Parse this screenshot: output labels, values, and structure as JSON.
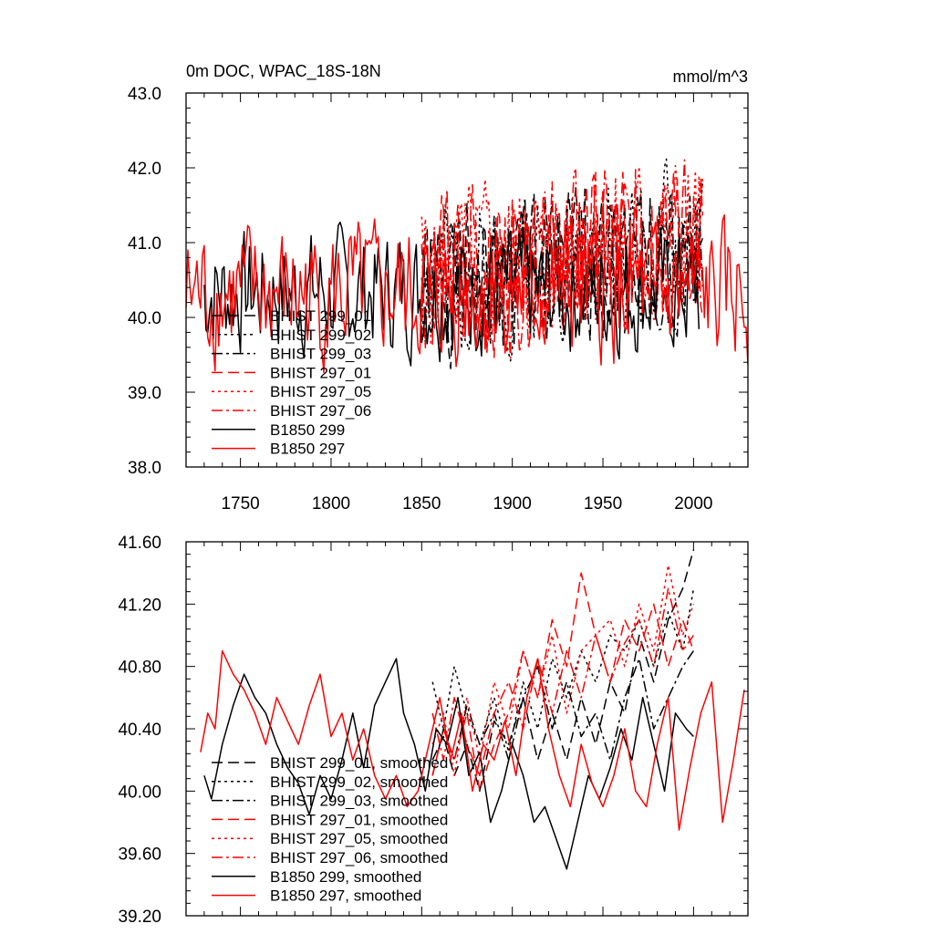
{
  "chart_data": [
    {
      "type": "line",
      "title": "0m DOC, WPAC_18S-18N",
      "units": "mmol/m^3",
      "xlabel": "",
      "ylabel": "",
      "xlim": [
        1720,
        2030
      ],
      "ylim": [
        38.0,
        43.0
      ],
      "xticks": [
        "1750",
        "1800",
        "1850",
        "1900",
        "1950",
        "2000"
      ],
      "yticks": [
        "38.0",
        "39.0",
        "40.0",
        "41.0",
        "42.0",
        "43.0"
      ],
      "legend_position": "left",
      "series": [
        {
          "name": "BHIST 299_01",
          "color": "#000000",
          "dash": "longdash",
          "x_range": [
            1850,
            2005
          ],
          "mean": 40.45,
          "noise": 0.55,
          "trend": 0.5,
          "seed": 1
        },
        {
          "name": "BHIST 299_02",
          "color": "#000000",
          "dash": "dot",
          "x_range": [
            1850,
            2005
          ],
          "mean": 40.5,
          "noise": 0.55,
          "trend": 0.45,
          "seed": 2
        },
        {
          "name": "BHIST 299_03",
          "color": "#000000",
          "dash": "dashdot",
          "x_range": [
            1850,
            2005
          ],
          "mean": 40.4,
          "noise": 0.5,
          "trend": 0.5,
          "seed": 3
        },
        {
          "name": "BHIST 297_01",
          "color": "#ff0000",
          "dash": "longdash",
          "x_range": [
            1850,
            2005
          ],
          "mean": 40.6,
          "noise": 0.6,
          "trend": 0.5,
          "seed": 4
        },
        {
          "name": "BHIST 297_05",
          "color": "#ff0000",
          "dash": "dot",
          "x_range": [
            1850,
            2005
          ],
          "mean": 40.6,
          "noise": 0.6,
          "trend": 0.55,
          "seed": 5
        },
        {
          "name": "BHIST 297_06",
          "color": "#ff0000",
          "dash": "dashdot",
          "x_range": [
            1850,
            2005
          ],
          "mean": 40.55,
          "noise": 0.6,
          "trend": 0.5,
          "seed": 6
        },
        {
          "name": "B1850 299",
          "color": "#000000",
          "dash": "solid",
          "x_range": [
            1730,
            2003
          ],
          "mean": 40.35,
          "noise": 0.45,
          "trend": 0.0,
          "seed": 7
        },
        {
          "name": "B1850 297",
          "color": "#ff0000",
          "dash": "solid",
          "x_range": [
            1720,
            2030
          ],
          "mean": 40.3,
          "noise": 0.5,
          "trend": 0.0,
          "seed": 8
        }
      ]
    },
    {
      "type": "line",
      "title": "",
      "xlabel": "",
      "ylabel": "",
      "xlim": [
        1720,
        2030
      ],
      "ylim": [
        39.2,
        41.6
      ],
      "yticks": [
        "39.20",
        "39.60",
        "40.00",
        "40.40",
        "40.80",
        "41.20",
        "41.60"
      ],
      "legend_position": "left",
      "series": [
        {
          "name": "BHIST 299_01, smoothed",
          "color": "#000000",
          "dash": "longdash",
          "x": [
            1856,
            1862,
            1868,
            1875,
            1882,
            1890,
            1898,
            1906,
            1914,
            1922,
            1930,
            1938,
            1946,
            1954,
            1962,
            1970,
            1978,
            1986,
            1994,
            2000
          ],
          "y": [
            40.2,
            40.35,
            40.1,
            40.3,
            40.0,
            40.45,
            40.3,
            40.6,
            40.2,
            40.5,
            40.2,
            40.6,
            40.3,
            40.7,
            40.5,
            41.0,
            40.7,
            41.1,
            41.3,
            41.55
          ]
        },
        {
          "name": "BHIST 299_02, smoothed",
          "color": "#000000",
          "dash": "dot",
          "x": [
            1856,
            1862,
            1868,
            1875,
            1882,
            1890,
            1898,
            1906,
            1914,
            1922,
            1930,
            1938,
            1946,
            1954,
            1962,
            1970,
            1978,
            1986,
            1994,
            2000
          ],
          "y": [
            40.7,
            40.4,
            40.8,
            40.5,
            40.3,
            40.6,
            40.25,
            40.7,
            40.4,
            40.85,
            40.6,
            40.9,
            40.7,
            41.0,
            40.9,
            41.1,
            40.8,
            41.15,
            40.9,
            41.3
          ]
        },
        {
          "name": "BHIST 299_03, smoothed",
          "color": "#000000",
          "dash": "dashdot",
          "x": [
            1856,
            1862,
            1868,
            1875,
            1882,
            1890,
            1898,
            1906,
            1914,
            1922,
            1930,
            1938,
            1946,
            1954,
            1962,
            1970,
            1978,
            1986,
            1994,
            2000
          ],
          "y": [
            40.1,
            40.4,
            40.2,
            40.55,
            40.3,
            40.5,
            40.2,
            40.6,
            40.8,
            40.4,
            40.7,
            40.35,
            40.5,
            40.2,
            40.6,
            40.85,
            40.4,
            40.6,
            40.8,
            40.9
          ]
        },
        {
          "name": "BHIST 297_01, smoothed",
          "color": "#ff0000",
          "dash": "longdash",
          "x": [
            1856,
            1862,
            1868,
            1875,
            1882,
            1890,
            1898,
            1906,
            1914,
            1922,
            1930,
            1938,
            1946,
            1954,
            1962,
            1970,
            1978,
            1986,
            1994,
            2000
          ],
          "y": [
            40.1,
            40.4,
            40.2,
            40.5,
            40.0,
            40.3,
            40.5,
            40.9,
            40.6,
            41.1,
            40.8,
            41.4,
            41.0,
            40.7,
            41.1,
            40.9,
            41.2,
            40.8,
            41.1,
            40.9
          ]
        },
        {
          "name": "BHIST 297_05, smoothed",
          "color": "#ff0000",
          "dash": "dot",
          "x": [
            1856,
            1862,
            1868,
            1875,
            1882,
            1890,
            1898,
            1906,
            1914,
            1922,
            1930,
            1938,
            1946,
            1954,
            1962,
            1970,
            1978,
            1986,
            1994,
            2000
          ],
          "y": [
            40.3,
            40.5,
            40.1,
            40.6,
            40.2,
            40.7,
            40.4,
            40.9,
            40.6,
            41.0,
            40.5,
            40.9,
            41.0,
            41.1,
            40.8,
            41.2,
            40.9,
            41.45,
            41.0,
            41.2
          ]
        },
        {
          "name": "BHIST 297_06, smoothed",
          "color": "#ff0000",
          "dash": "dashdot",
          "x": [
            1856,
            1862,
            1868,
            1875,
            1882,
            1890,
            1898,
            1906,
            1914,
            1922,
            1930,
            1938,
            1946,
            1954,
            1962,
            1970,
            1978,
            1986,
            1994,
            2000
          ],
          "y": [
            40.5,
            40.2,
            40.6,
            40.3,
            40.1,
            40.5,
            40.7,
            40.4,
            40.85,
            40.5,
            40.9,
            40.6,
            41.0,
            40.7,
            40.95,
            41.1,
            40.8,
            41.3,
            40.9,
            41.0
          ]
        },
        {
          "name": "B1850 299, smoothed",
          "color": "#000000",
          "dash": "solid",
          "x": [
            1730,
            1734,
            1740,
            1746,
            1752,
            1758,
            1764,
            1770,
            1776,
            1782,
            1788,
            1794,
            1800,
            1806,
            1812,
            1818,
            1824,
            1830,
            1836,
            1840,
            1846,
            1852,
            1858,
            1864,
            1870,
            1876,
            1882,
            1888,
            1894,
            1900,
            1906,
            1912,
            1918,
            1924,
            1930,
            1936,
            1942,
            1948,
            1954,
            1960,
            1966,
            1972,
            1978,
            1984,
            1990,
            1996,
            2000
          ],
          "y": [
            40.1,
            39.95,
            40.3,
            40.55,
            40.75,
            40.6,
            40.5,
            40.3,
            40.15,
            40.05,
            39.85,
            40.1,
            39.95,
            40.2,
            40.5,
            40.15,
            40.55,
            40.7,
            40.85,
            40.5,
            40.3,
            40.0,
            40.4,
            40.3,
            40.6,
            40.1,
            40.25,
            39.8,
            40.0,
            40.3,
            40.1,
            39.8,
            39.9,
            39.7,
            39.5,
            39.8,
            40.1,
            39.95,
            40.15,
            40.4,
            40.2,
            40.6,
            40.3,
            40.0,
            40.5,
            40.4,
            40.35
          ]
        },
        {
          "name": "B1850 297, smoothed",
          "color": "#ff0000",
          "dash": "solid",
          "x": [
            1728,
            1732,
            1736,
            1740,
            1746,
            1752,
            1758,
            1764,
            1770,
            1776,
            1782,
            1788,
            1794,
            1800,
            1806,
            1812,
            1818,
            1824,
            1830,
            1836,
            1842,
            1848,
            1854,
            1860,
            1866,
            1872,
            1878,
            1884,
            1890,
            1896,
            1902,
            1908,
            1914,
            1920,
            1926,
            1932,
            1938,
            1944,
            1950,
            1956,
            1962,
            1968,
            1974,
            1980,
            1986,
            1992,
            1998,
            2004,
            2010,
            2016,
            2022,
            2028
          ],
          "y": [
            40.25,
            40.5,
            40.4,
            40.9,
            40.75,
            40.65,
            40.5,
            40.3,
            40.6,
            40.45,
            40.3,
            40.55,
            40.75,
            40.35,
            40.5,
            40.2,
            40.4,
            40.1,
            39.95,
            40.1,
            39.9,
            40.0,
            40.3,
            40.6,
            40.2,
            40.5,
            40.0,
            40.3,
            40.2,
            40.45,
            40.1,
            40.6,
            40.85,
            40.4,
            40.1,
            39.9,
            40.3,
            40.05,
            39.9,
            40.1,
            40.4,
            40.0,
            39.9,
            40.3,
            40.6,
            39.75,
            40.15,
            40.5,
            40.7,
            39.8,
            40.2,
            40.65
          ]
        }
      ]
    }
  ]
}
